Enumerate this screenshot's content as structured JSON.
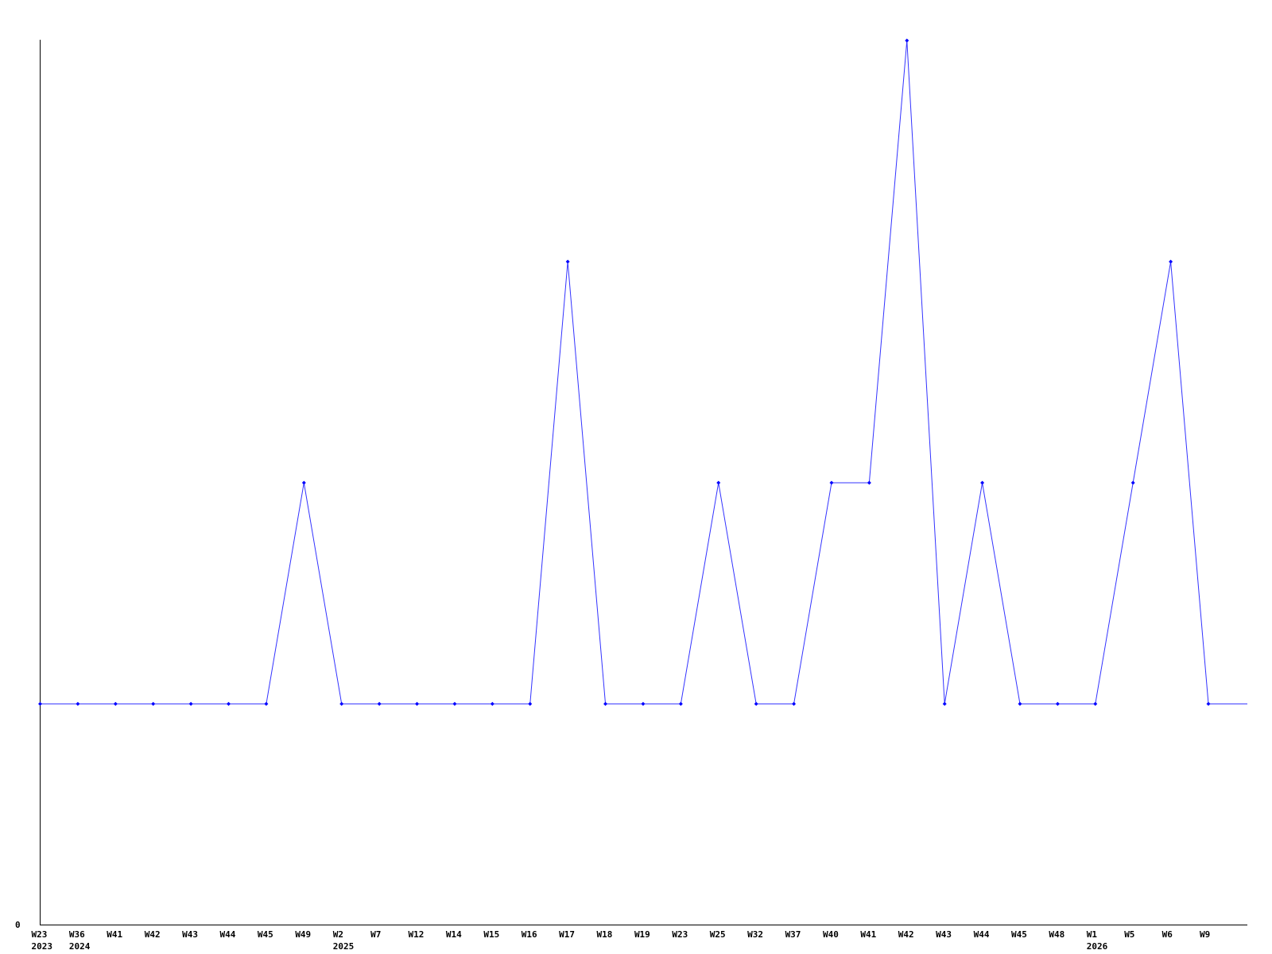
{
  "chart_data": {
    "type": "line",
    "title": "",
    "xlabel": "",
    "ylabel": "",
    "ylim": [
      0,
      4
    ],
    "y_tick_labels": [
      "0"
    ],
    "grid": false,
    "legend": "none",
    "line_color": "#3333ff",
    "marker_color": "#0000ff",
    "categories": [
      "W23",
      "W36",
      "W41",
      "W42",
      "W43",
      "W44",
      "W45",
      "W49",
      "W2",
      "W7",
      "W12",
      "W14",
      "W15",
      "W16",
      "W17",
      "W18",
      "W19",
      "W23",
      "W25",
      "W32",
      "W37",
      "W40",
      "W41",
      "W42",
      "W43",
      "W44",
      "W45",
      "W48",
      "W1",
      "W5",
      "W6",
      "W9"
    ],
    "year_labels": {
      "0": "2023",
      "1": "2024",
      "8": "2025",
      "28": "2026"
    },
    "values": [
      1,
      1,
      1,
      1,
      1,
      1,
      1,
      2,
      1,
      1,
      1,
      1,
      1,
      1,
      3,
      1,
      1,
      1,
      2,
      1,
      1,
      2,
      2,
      4,
      1,
      2,
      1,
      1,
      1,
      2,
      3,
      1
    ]
  }
}
